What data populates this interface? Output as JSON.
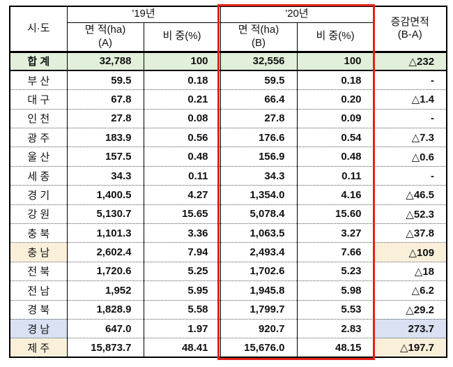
{
  "colors": {
    "total_row_bg": "#E2EFDA",
    "cream_row_bg": "#FAF0DA",
    "blue_row_bg": "#D9E1F2",
    "red_box": "#E32119",
    "grid": "#000000"
  },
  "chart_data": {
    "type": "table",
    "header": {
      "sido": "시·도",
      "year_2019": "'19년",
      "year_2020": "'20년",
      "area_a": "면 적(ha)\n(A)",
      "area_b": "면 적(ha)\n(B)",
      "share": "비 중(%)",
      "diff": "증감면적\n(B-A)"
    },
    "rows": [
      {
        "name": "합 계",
        "area_a": "32,788",
        "share_a": "100",
        "area_b": "32,556",
        "share_b": "100",
        "diff": "△232",
        "highlight": "total"
      },
      {
        "name": "부 산",
        "area_a": "59.5",
        "share_a": "0.18",
        "area_b": "59.5",
        "share_b": "0.18",
        "diff": "-",
        "highlight": "none"
      },
      {
        "name": "대 구",
        "area_a": "67.8",
        "share_a": "0.21",
        "area_b": "66.4",
        "share_b": "0.20",
        "diff": "△1.4",
        "highlight": "none"
      },
      {
        "name": "인 천",
        "area_a": "27.8",
        "share_a": "0.08",
        "area_b": "27.8",
        "share_b": "0.09",
        "diff": "-",
        "highlight": "none"
      },
      {
        "name": "광 주",
        "area_a": "183.9",
        "share_a": "0.56",
        "area_b": "176.6",
        "share_b": "0.54",
        "diff": "△7.3",
        "highlight": "none"
      },
      {
        "name": "울 산",
        "area_a": "157.5",
        "share_a": "0.48",
        "area_b": "156.9",
        "share_b": "0.48",
        "diff": "△0.6",
        "highlight": "none"
      },
      {
        "name": "세 종",
        "area_a": "34.3",
        "share_a": "0.11",
        "area_b": "34.3",
        "share_b": "0.11",
        "diff": "-",
        "highlight": "none"
      },
      {
        "name": "경 기",
        "area_a": "1,400.5",
        "share_a": "4.27",
        "area_b": "1,354.0",
        "share_b": "4.16",
        "diff": "△46.5",
        "highlight": "none"
      },
      {
        "name": "강 원",
        "area_a": "5,130.7",
        "share_a": "15.65",
        "area_b": "5,078.4",
        "share_b": "15.60",
        "diff": "△52.3",
        "highlight": "none"
      },
      {
        "name": "충 북",
        "area_a": "1,101.3",
        "share_a": "3.36",
        "area_b": "1,063.5",
        "share_b": "3.27",
        "diff": "△37.8",
        "highlight": "none"
      },
      {
        "name": "충 남",
        "area_a": "2,602.4",
        "share_a": "7.94",
        "area_b": "2,493.4",
        "share_b": "7.66",
        "diff": "△109",
        "highlight": "cream"
      },
      {
        "name": "전 북",
        "area_a": "1,720.6",
        "share_a": "5.25",
        "area_b": "1,702.6",
        "share_b": "5.23",
        "diff": "△18",
        "highlight": "none"
      },
      {
        "name": "전 남",
        "area_a": "1,952",
        "share_a": "5.95",
        "area_b": "1,945.8",
        "share_b": "5.98",
        "diff": "△6.2",
        "highlight": "none"
      },
      {
        "name": "경 북",
        "area_a": "1,828.9",
        "share_a": "5.58",
        "area_b": "1,799.7",
        "share_b": "5.53",
        "diff": "△29.2",
        "highlight": "none"
      },
      {
        "name": "경 남",
        "area_a": "647.0",
        "share_a": "1.97",
        "area_b": "920.7",
        "share_b": "2.83",
        "diff": "273.7",
        "highlight": "blue"
      },
      {
        "name": "제 주",
        "area_a": "15,873.7",
        "share_a": "48.41",
        "area_b": "15,676.0",
        "share_b": "48.15",
        "diff": "△197.7",
        "highlight": "cream"
      }
    ]
  }
}
